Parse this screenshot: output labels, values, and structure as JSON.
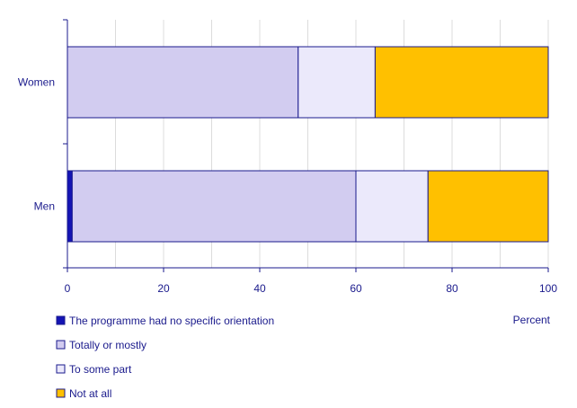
{
  "chart_data": {
    "type": "bar",
    "orientation": "horizontal",
    "stacked": true,
    "categories": [
      "Women",
      "Men"
    ],
    "series": [
      {
        "name": "The programme had no specific orientation",
        "values": [
          0,
          1
        ],
        "color": "#1414b4"
      },
      {
        "name": "Totally or mostly",
        "values": [
          48,
          59
        ],
        "color": "#d2ccf0"
      },
      {
        "name": "To some part",
        "values": [
          16,
          15
        ],
        "color": "#ebe9fb"
      },
      {
        "name": "Not at all",
        "values": [
          36,
          25
        ],
        "color": "#ffc000"
      }
    ],
    "xlim": [
      0,
      100
    ],
    "xticks": [
      0,
      20,
      40,
      60,
      80,
      100
    ],
    "xlabel": "Percent",
    "grid": "vertical",
    "legend": "bottom-left"
  }
}
